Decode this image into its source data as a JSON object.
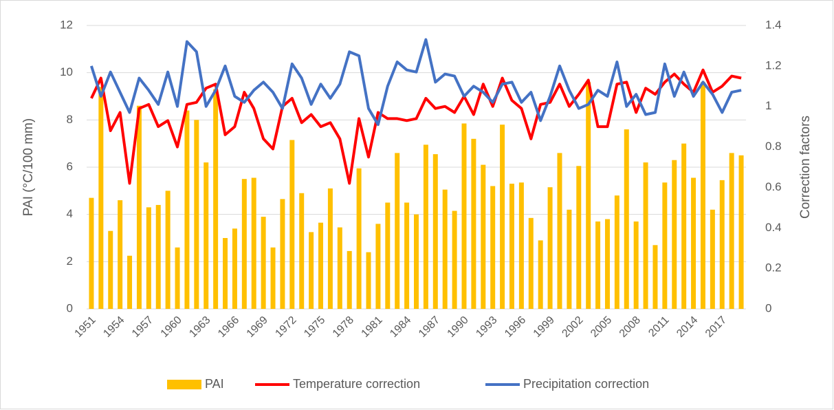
{
  "chart_data": {
    "type": "bar_line",
    "y_label": "PAI (°C/100 mm)",
    "y2_label": "Correction factors",
    "categories": [
      "1951",
      null,
      null,
      "1954",
      null,
      null,
      "1957",
      null,
      null,
      "1960",
      null,
      null,
      "1963",
      null,
      null,
      "1966",
      null,
      null,
      "1969",
      null,
      null,
      "1972",
      null,
      null,
      "1975",
      null,
      null,
      "1978",
      null,
      null,
      "1981",
      null,
      null,
      "1984",
      null,
      null,
      "1987",
      null,
      null,
      "1990",
      null,
      null,
      "1993",
      null,
      null,
      "1996",
      null,
      null,
      "1999",
      null,
      null,
      "2002",
      null,
      null,
      "2005",
      null,
      null,
      "2008",
      null,
      null,
      "2011",
      null,
      null,
      "2014",
      null,
      null,
      "2017",
      null,
      null
    ],
    "series": [
      {
        "name": "PAI",
        "kind": "bar",
        "axis": "y",
        "color": "#ffc000",
        "values": [
          4.7,
          9.4,
          3.3,
          4.6,
          2.25,
          8.6,
          4.3,
          4.4,
          5.0,
          2.6,
          8.4,
          8.0,
          6.2,
          9.3,
          3.0,
          3.4,
          5.5,
          5.55,
          3.9,
          2.6,
          4.65,
          7.15,
          4.9,
          3.25,
          3.65,
          5.1,
          3.45,
          2.45,
          5.95,
          2.4,
          3.6,
          4.5,
          6.6,
          4.5,
          4.0,
          6.95,
          6.55,
          5.05,
          4.15,
          7.85,
          7.2,
          6.1,
          5.2,
          7.8,
          5.3,
          5.35,
          3.85,
          2.9,
          5.15,
          6.6,
          4.2,
          6.05,
          9.6,
          3.7,
          3.8,
          4.8,
          7.6,
          3.7,
          6.2,
          2.7,
          5.35,
          6.3,
          7.0,
          5.55,
          9.6,
          4.2,
          5.45,
          6.6,
          6.5
        ]
      },
      {
        "name": "Temperature correction",
        "kind": "line",
        "axis": "y2",
        "color": "#ff0000",
        "values": [
          1.04,
          1.14,
          0.88,
          0.97,
          0.62,
          0.99,
          1.01,
          0.9,
          0.93,
          0.8,
          1.01,
          1.02,
          1.09,
          1.11,
          0.86,
          0.9,
          1.07,
          0.99,
          0.84,
          0.79,
          1.0,
          1.04,
          0.92,
          0.96,
          0.9,
          0.92,
          0.84,
          0.62,
          0.94,
          0.75,
          0.97,
          0.94,
          0.94,
          0.93,
          0.94,
          1.04,
          0.99,
          1.0,
          0.97,
          1.05,
          0.96,
          1.11,
          1.0,
          1.14,
          1.03,
          0.99,
          0.84,
          1.01,
          1.02,
          1.11,
          1.0,
          1.06,
          1.13,
          0.9,
          0.9,
          1.11,
          1.12,
          0.97,
          1.09,
          1.06,
          1.12,
          1.16,
          1.11,
          1.07,
          1.18,
          1.07,
          1.1,
          1.15,
          1.14
        ]
      },
      {
        "name": "Precipitation correction",
        "kind": "line",
        "axis": "y2",
        "color": "#4472c4",
        "values": [
          1.2,
          1.05,
          1.17,
          1.07,
          0.97,
          1.14,
          1.08,
          1.01,
          1.17,
          1.0,
          1.32,
          1.27,
          1.0,
          1.08,
          1.2,
          1.05,
          1.02,
          1.08,
          1.12,
          1.07,
          0.99,
          1.21,
          1.14,
          1.01,
          1.11,
          1.04,
          1.11,
          1.27,
          1.25,
          0.99,
          0.91,
          1.1,
          1.22,
          1.18,
          1.17,
          1.33,
          1.12,
          1.16,
          1.15,
          1.05,
          1.1,
          1.07,
          1.02,
          1.11,
          1.12,
          1.02,
          1.07,
          0.93,
          1.05,
          1.2,
          1.08,
          0.99,
          1.01,
          1.08,
          1.05,
          1.22,
          1.0,
          1.06,
          0.96,
          0.97,
          1.21,
          1.05,
          1.17,
          1.05,
          1.12,
          1.06,
          0.97,
          1.07,
          1.08
        ]
      }
    ],
    "ylim": [
      0,
      12
    ],
    "yticks": [
      0,
      2,
      4,
      6,
      8,
      10,
      12
    ],
    "y2lim": [
      0,
      1.4
    ],
    "y2ticks": [
      0,
      0.2,
      0.4,
      0.6,
      0.8,
      1,
      1.2,
      1.4
    ],
    "grid": true,
    "legend": "bottom"
  }
}
